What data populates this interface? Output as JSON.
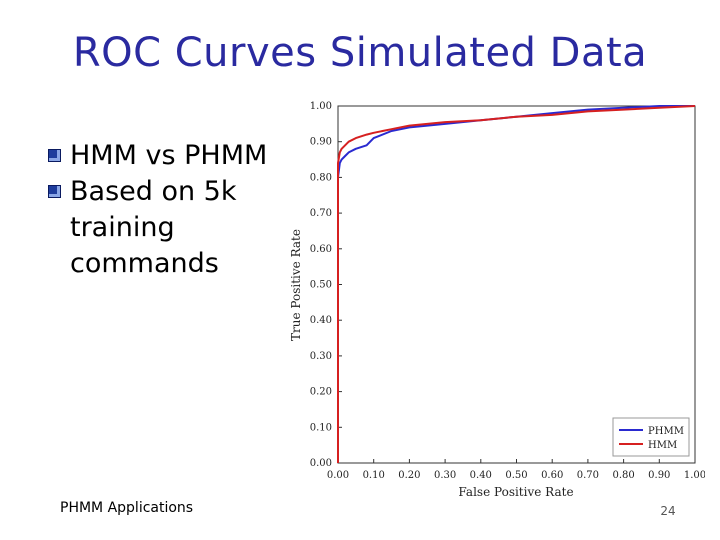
{
  "slide": {
    "title": "ROC Curves Simulated Data",
    "bullets": [
      "HMM vs PHMM",
      "Based on 5k training commands"
    ],
    "footer": "PHMM Applications",
    "page_number": "24"
  },
  "chart_data": {
    "type": "line",
    "title": "",
    "xlabel": "False Positive Rate",
    "ylabel": "True Positive Rate",
    "xlim": [
      0,
      1
    ],
    "ylim": [
      0,
      1
    ],
    "xticks": [
      "0.00",
      "0.10",
      "0.20",
      "0.30",
      "0.40",
      "0.50",
      "0.60",
      "0.70",
      "0.80",
      "0.90",
      "1.00"
    ],
    "yticks": [
      "0.00",
      "0.10",
      "0.20",
      "0.30",
      "0.40",
      "0.50",
      "0.60",
      "0.70",
      "0.80",
      "0.90",
      "1.00"
    ],
    "legend_position": "bottom-right",
    "series": [
      {
        "name": "PHMM",
        "color": "#2a2ad0",
        "x": [
          0.0,
          0.0,
          0.005,
          0.01,
          0.02,
          0.03,
          0.05,
          0.08,
          0.1,
          0.15,
          0.2,
          0.3,
          0.4,
          0.5,
          0.6,
          0.7,
          0.8,
          0.9,
          1.0
        ],
        "y": [
          0.0,
          0.8,
          0.84,
          0.85,
          0.86,
          0.87,
          0.88,
          0.89,
          0.91,
          0.93,
          0.94,
          0.95,
          0.96,
          0.97,
          0.98,
          0.99,
          0.995,
          1.0,
          1.0
        ]
      },
      {
        "name": "HMM",
        "color": "#d62020",
        "x": [
          0.0,
          0.0,
          0.005,
          0.01,
          0.02,
          0.03,
          0.05,
          0.08,
          0.1,
          0.15,
          0.2,
          0.3,
          0.4,
          0.5,
          0.6,
          0.7,
          0.8,
          0.9,
          1.0
        ],
        "y": [
          0.0,
          0.84,
          0.87,
          0.88,
          0.89,
          0.9,
          0.91,
          0.92,
          0.925,
          0.935,
          0.945,
          0.955,
          0.96,
          0.97,
          0.975,
          0.985,
          0.99,
          0.995,
          1.0
        ]
      }
    ]
  }
}
